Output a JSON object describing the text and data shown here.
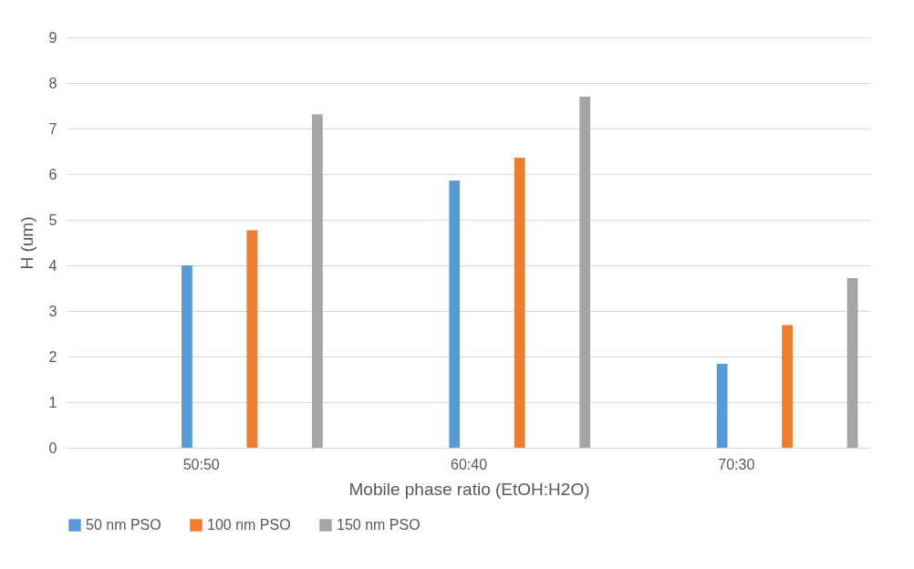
{
  "chart_data": {
    "type": "bar",
    "xlabel": "Mobile phase ratio (EtOH:H2O)",
    "ylabel": "H (um)",
    "categories": [
      "50:50",
      "60:40",
      "70:30"
    ],
    "series": [
      {
        "name": "50 nm PSO",
        "color": "#5b9bd5",
        "values": [
          4.0,
          5.86,
          1.84
        ]
      },
      {
        "name": "100 nm PSO",
        "color": "#ed7d31",
        "values": [
          4.77,
          6.36,
          2.69
        ]
      },
      {
        "name": "150 nm PSO",
        "color": "#a5a5a5",
        "values": [
          7.31,
          7.7,
          3.72
        ]
      }
    ],
    "ylim": [
      0,
      9
    ],
    "yticks": [
      0,
      1,
      2,
      3,
      4,
      5,
      6,
      7,
      8,
      9
    ],
    "grid": "y",
    "legend": "bottom"
  }
}
